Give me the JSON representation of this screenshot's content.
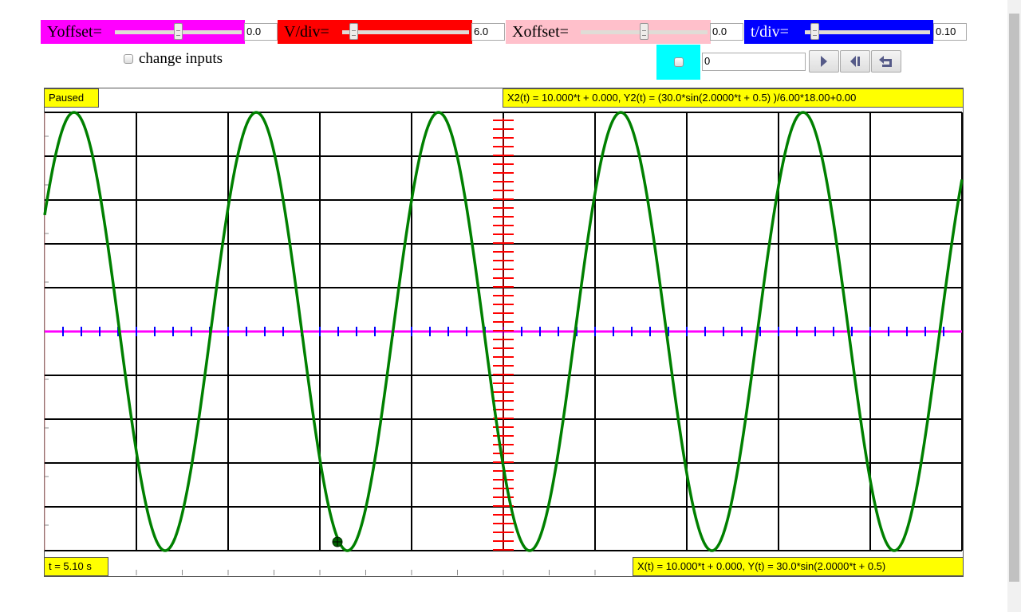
{
  "controls": {
    "yoffset": {
      "label": "Yoffset=",
      "value": "0.0",
      "color": "#ff00ff",
      "fraction": 0.5
    },
    "vdiv": {
      "label": "V/div=",
      "value": "6.0",
      "color": "#ff0000",
      "fraction": 0.06
    },
    "xoffset": {
      "label": "Xoffset=",
      "value": "0.0",
      "color": "#ffc0cb",
      "fraction": 0.5
    },
    "tdiv": {
      "label": "t/div=",
      "value": "0.10",
      "color": "#0000ff",
      "fraction": 0.05
    },
    "change_inputs": "change inputs",
    "time_input": "0"
  },
  "buttons": {
    "play": "play-icon",
    "step_back": "step-back-icon",
    "reset": "reset-icon"
  },
  "scope": {
    "status": "Paused",
    "time": "t = 5.10 s",
    "formula2": "X2(t) = 10.000*t + 0.000, Y2(t) = (30.0*sin(2.0000*t + 0.5) )/6.00*18.00+0.00",
    "formula1": "X(t) = 10.000*t + 0.000, Y(t) = 30.0*sin(2.0000*t + 0.5)",
    "curve_color": "#008000",
    "axis_color": "#ff00ff",
    "tick_color": "#0000ff",
    "yaxis_tick_color": "#ff0000"
  }
}
